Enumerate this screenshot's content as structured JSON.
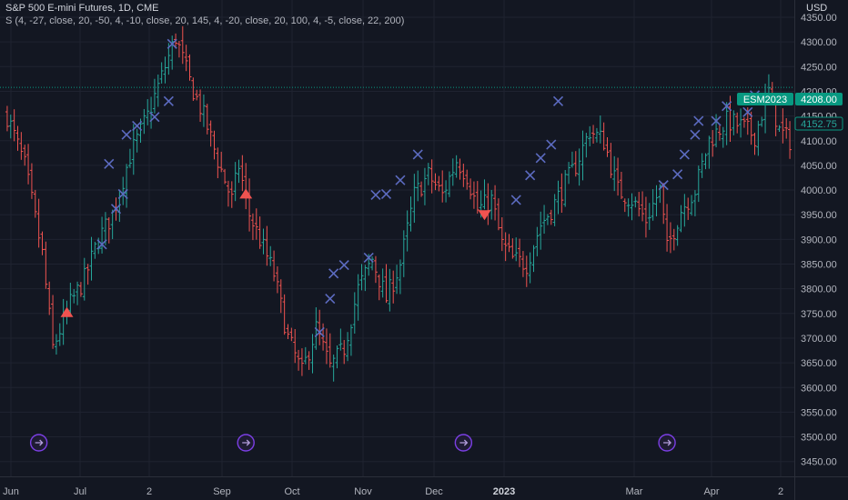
{
  "header": {
    "symbol_line": "S&P 500 E-mini Futures, 1D, CME",
    "indicator_line": "S (4, -27, close, 20, -50, 4, -10, close, 20, 145, 4, -20, close, 20, 100, 4, -5, close, 22, 200)",
    "currency": "USD"
  },
  "tags": {
    "symbol": "ESM2023",
    "last_price": "4208.00",
    "current_value": "4152.75"
  },
  "colors": {
    "background": "#131722",
    "up_bar": "#26a69a",
    "down_bar": "#ef5350",
    "marker_x": "#3f51b5",
    "marker_x_bright": "#5c6bc0",
    "signal": "#f05350",
    "price_tag": "#089981",
    "event_icon": "#7b3fe4",
    "grid": "#1f2330"
  },
  "chart_data": {
    "type": "ohlc",
    "title": "S&P 500 E-mini Futures, 1D, CME",
    "ylim": [
      3420,
      4385
    ],
    "y_ticks": [
      "4350.00",
      "4300.00",
      "4250.00",
      "4200.00",
      "4150.00",
      "4100.00",
      "4050.00",
      "4000.00",
      "3950.00",
      "3900.00",
      "3850.00",
      "3800.00",
      "3750.00",
      "3700.00",
      "3650.00",
      "3600.00",
      "3550.00",
      "3500.00",
      "3450.00"
    ],
    "x_ticks": [
      {
        "label": "Jun",
        "bold": false
      },
      {
        "label": "Jul",
        "bold": false
      },
      {
        "label": "2",
        "bold": false
      },
      {
        "label": "Sep",
        "bold": false
      },
      {
        "label": "Oct",
        "bold": false
      },
      {
        "label": "Nov",
        "bold": false
      },
      {
        "label": "Dec",
        "bold": false
      },
      {
        "label": "2023",
        "bold": true
      },
      {
        "label": "Mar",
        "bold": false
      },
      {
        "label": "Apr",
        "bold": false
      },
      {
        "label": "2",
        "bold": false
      }
    ],
    "anchors": [
      [
        0,
        4150
      ],
      [
        5,
        4050
      ],
      [
        10,
        3870
      ],
      [
        13,
        3680
      ],
      [
        18,
        3770
      ],
      [
        22,
        3820
      ],
      [
        26,
        3900
      ],
      [
        30,
        3950
      ],
      [
        35,
        4070
      ],
      [
        40,
        4150
      ],
      [
        45,
        4250
      ],
      [
        48,
        4310
      ],
      [
        52,
        4220
      ],
      [
        56,
        4150
      ],
      [
        60,
        4060
      ],
      [
        64,
        3980
      ],
      [
        66,
        4050
      ],
      [
        69,
        3950
      ],
      [
        72,
        3900
      ],
      [
        76,
        3830
      ],
      [
        80,
        3700
      ],
      [
        84,
        3630
      ],
      [
        88,
        3720
      ],
      [
        92,
        3640
      ],
      [
        96,
        3680
      ],
      [
        100,
        3800
      ],
      [
        104,
        3860
      ],
      [
        108,
        3780
      ],
      [
        112,
        3850
      ],
      [
        116,
        3990
      ],
      [
        120,
        4030
      ],
      [
        124,
        3990
      ],
      [
        128,
        4060
      ],
      [
        131,
        4030
      ],
      [
        134,
        3960
      ],
      [
        138,
        3980
      ],
      [
        141,
        3890
      ],
      [
        144,
        3860
      ],
      [
        148,
        3850
      ],
      [
        152,
        3930
      ],
      [
        155,
        3960
      ],
      [
        158,
        4000
      ],
      [
        162,
        4050
      ],
      [
        166,
        4120
      ],
      [
        170,
        4100
      ],
      [
        174,
        4000
      ],
      [
        178,
        3980
      ],
      [
        182,
        3940
      ],
      [
        186,
        4000
      ],
      [
        188,
        3880
      ],
      [
        192,
        3960
      ],
      [
        196,
        4000
      ],
      [
        200,
        4100
      ],
      [
        205,
        4140
      ],
      [
        209,
        4130
      ],
      [
        213,
        4110
      ],
      [
        217,
        4200
      ],
      [
        220,
        4120
      ],
      [
        223,
        4100
      ]
    ],
    "markers": [
      {
        "type": "X",
        "bar": 34,
        "price": 4112
      },
      {
        "type": "X",
        "bar": 37,
        "price": 4130
      },
      {
        "type": "X",
        "bar": 42,
        "price": 4148
      },
      {
        "type": "X",
        "bar": 46,
        "price": 4180
      },
      {
        "type": "X",
        "bar": 47,
        "price": 4296
      },
      {
        "type": "X",
        "bar": 29,
        "price": 4053
      },
      {
        "type": "X",
        "bar": 31,
        "price": 3962
      },
      {
        "type": "X",
        "bar": 33,
        "price": 3992
      },
      {
        "type": "X",
        "bar": 27,
        "price": 3890
      },
      {
        "type": "X",
        "bar": 89,
        "price": 3712
      },
      {
        "type": "X",
        "bar": 92,
        "price": 3780
      },
      {
        "type": "X",
        "bar": 93,
        "price": 3831
      },
      {
        "type": "X",
        "bar": 96,
        "price": 3848
      },
      {
        "type": "X",
        "bar": 103,
        "price": 3863
      },
      {
        "type": "X",
        "bar": 105,
        "price": 3990
      },
      {
        "type": "X",
        "bar": 108,
        "price": 3992
      },
      {
        "type": "X",
        "bar": 112,
        "price": 4020
      },
      {
        "type": "X",
        "bar": 117,
        "price": 4072
      },
      {
        "type": "X",
        "bar": 145,
        "price": 3980
      },
      {
        "type": "X",
        "bar": 149,
        "price": 4030
      },
      {
        "type": "X",
        "bar": 152,
        "price": 4065
      },
      {
        "type": "X",
        "bar": 155,
        "price": 4092
      },
      {
        "type": "X",
        "bar": 157,
        "price": 4180
      },
      {
        "type": "X",
        "bar": 187,
        "price": 4010
      },
      {
        "type": "X",
        "bar": 191,
        "price": 4032
      },
      {
        "type": "X",
        "bar": 193,
        "price": 4072
      },
      {
        "type": "X",
        "bar": 196,
        "price": 4112
      },
      {
        "type": "X",
        "bar": 197,
        "price": 4140
      },
      {
        "type": "X",
        "bar": 202,
        "price": 4140
      },
      {
        "type": "X",
        "bar": 205,
        "price": 4170
      },
      {
        "type": "X",
        "bar": 211,
        "price": 4158
      },
      {
        "type": "X",
        "bar": 213,
        "price": 4192
      },
      {
        "type": "up",
        "bar": 17,
        "price": 3752
      },
      {
        "type": "up",
        "bar": 68,
        "price": 3992
      },
      {
        "type": "down",
        "bar": 136,
        "price": 3950
      }
    ],
    "events": [
      9,
      68,
      130,
      188
    ],
    "last_price": 4208.0,
    "current_value": 4152.75
  }
}
